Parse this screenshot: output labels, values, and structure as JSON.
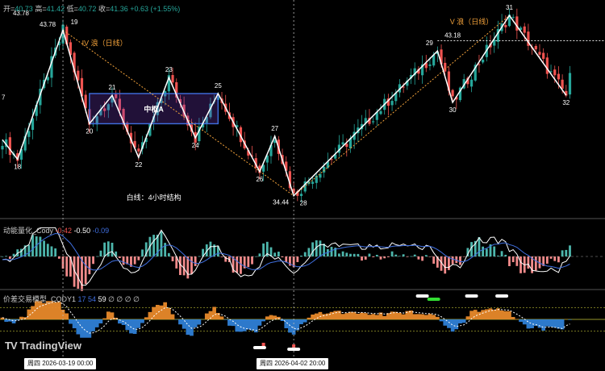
{
  "header": {
    "open_label": "开=",
    "open": "40.73",
    "high_label": "高=",
    "high": "41.42",
    "low_label": "低=",
    "low": "40.72",
    "close_label": "收=",
    "close": "41.36",
    "change": "+0.63 (+1.55%)"
  },
  "colors": {
    "up": "#26a69a",
    "down": "#ef5350",
    "wave": "#ffffff",
    "trend": "#f0a03a",
    "box": "#3f6fe0",
    "macd_fast": "#ffffff",
    "macd_slow": "#3f6fe0",
    "orange_fill": "#e8892a",
    "blue_fill": "#2f7fd6"
  },
  "chart_data": {
    "type": "candlestick",
    "price_range": [
      33.2,
      45.2
    ],
    "annotations": {
      "wave4_label": "IV 浪（日线）",
      "wave5_label": "V 浪（日线）",
      "pivot_label": "中枢A",
      "caption": "白线：4小时结构",
      "price_labels": [
        {
          "text": "43.78",
          "price": 43.78
        },
        {
          "text": "43.78",
          "price": 43.78
        },
        {
          "text": "43.18",
          "price": 43.18
        },
        {
          "text": "34.44",
          "price": 34.44
        }
      ],
      "left_stub": "7"
    },
    "wave_points": [
      {
        "label": "",
        "bar": 0,
        "price": 37.6
      },
      {
        "label": "18",
        "bar": 4,
        "price": 36.5
      },
      {
        "label": "19",
        "bar": 16,
        "price": 43.78
      },
      {
        "label": "20",
        "bar": 23,
        "price": 38.5
      },
      {
        "label": "21",
        "bar": 29,
        "price": 40.1
      },
      {
        "label": "22",
        "bar": 36,
        "price": 36.6
      },
      {
        "label": "23",
        "bar": 44,
        "price": 41.1
      },
      {
        "label": "24",
        "bar": 51,
        "price": 37.7
      },
      {
        "label": "25",
        "bar": 57,
        "price": 40.2
      },
      {
        "label": "26",
        "bar": 68,
        "price": 35.8
      },
      {
        "label": "27",
        "bar": 72,
        "price": 37.8
      },
      {
        "label": "28",
        "bar": 77,
        "price": 34.44
      },
      {
        "label": "29",
        "bar": 115,
        "price": 42.6
      },
      {
        "label": "30",
        "bar": 119,
        "price": 39.7
      },
      {
        "label": "31",
        "bar": 134,
        "price": 44.6
      },
      {
        "label": "32",
        "bar": 149,
        "price": 40.1
      }
    ],
    "pivot_box": {
      "bar_start": 23,
      "bar_end": 57,
      "top": 40.2,
      "bottom": 38.5
    },
    "trend_lines": [
      {
        "from": {
          "bar": 16,
          "price": 43.78
        },
        "to": {
          "bar": 77,
          "price": 34.44
        }
      },
      {
        "from": {
          "bar": 77,
          "price": 34.44
        },
        "to": {
          "bar": 134,
          "price": 44.6
        }
      }
    ],
    "hline_price": 43.18,
    "current_price": 41.36
  },
  "macd": {
    "title": "动能量化_Cody",
    "values": [
      {
        "text": "-0.42",
        "color": "#ef5350"
      },
      {
        "text": "-0.50",
        "color": "#ffffff"
      },
      {
        "text": "-0.09",
        "color": "#3f6fe0"
      }
    ],
    "range": [
      -1.6,
      1.6
    ]
  },
  "osc": {
    "title": "价差交易模型_CODY1",
    "values": [
      {
        "text": "17",
        "color": "#3f6fe0"
      },
      {
        "text": "54",
        "color": "#3f6fe0"
      },
      {
        "text": "59",
        "color": "#ffffff"
      },
      {
        "text": "∅",
        "color": "#cccccc"
      },
      {
        "text": "∅",
        "color": "#cccccc"
      },
      {
        "text": "∅",
        "color": "#cccccc"
      },
      {
        "text": "∅",
        "color": "#cccccc"
      }
    ],
    "range": [
      -1,
      1
    ]
  },
  "branding": {
    "name": "TradingView"
  },
  "time_labels": [
    {
      "text": "周四  2026-03-19   00:00"
    },
    {
      "text": "周四  2026-04-02   20:00"
    }
  ]
}
